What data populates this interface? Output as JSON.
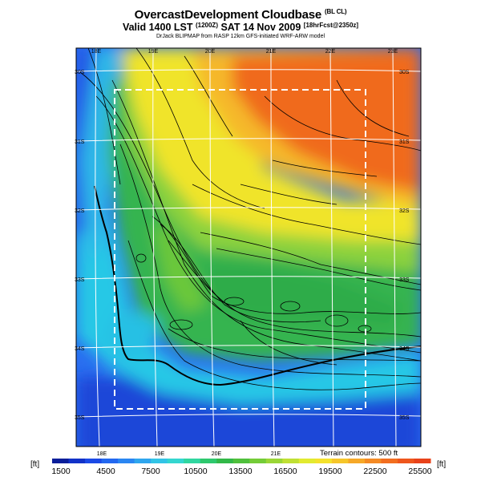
{
  "header": {
    "title": "OvercastDevelopment Cloudbase",
    "title_note": "(BL CL)",
    "valid_prefix": "Valid 1400 LST",
    "valid_time_note": "(1200Z)",
    "valid_date": "SAT 14 Nov 2009",
    "forecast_note": "[18hrFcst@2350z]",
    "credit": "DrJack BLIPMAP from RASP 12km GFS-initiated WRF-ARW model"
  },
  "map": {
    "lon_top_labels": [
      "18E",
      "19E",
      "20E",
      "21E",
      "22E",
      "23E"
    ],
    "lon_bottom_labels": [
      "18E",
      "19E",
      "20E",
      "21E"
    ],
    "lat_left_labels": [
      "30S",
      "31S",
      "32S",
      "33S",
      "34S",
      "35S"
    ],
    "lat_right_labels": [
      "30S",
      "31S",
      "32S",
      "33S",
      "34S",
      "35S"
    ],
    "terrain_note": "Terrain contours: 500 ft",
    "colors": {
      "deep_blue": "#1a3fd6",
      "blue": "#2a73f0",
      "cyan": "#27c8e6",
      "green": "#33b04a",
      "light_green": "#8ed43b",
      "yellow": "#f2ea2a",
      "orange_yellow": "#f6b52a",
      "orange": "#f26a1c",
      "grid": "#ffffff",
      "domain_box": "#ffffff"
    }
  },
  "colorbar": {
    "unit_left": "[ft]",
    "unit_right": "[ft]",
    "labels": [
      "1500",
      "4500",
      "7500",
      "10500",
      "13500",
      "16500",
      "19500",
      "22500",
      "25500"
    ],
    "colors": [
      "#0a1e9a",
      "#1232c8",
      "#1b4ae6",
      "#2368f0",
      "#2a86f2",
      "#2fa6ee",
      "#32c4e6",
      "#34d6d0",
      "#30d6a0",
      "#2ec86e",
      "#32b848",
      "#4fc03c",
      "#74cc38",
      "#9ad636",
      "#c0e034",
      "#e2ea30",
      "#f4e22c",
      "#f6c62a",
      "#f6a828",
      "#f48a24",
      "#f26e20",
      "#ee561c",
      "#e8421a"
    ]
  }
}
